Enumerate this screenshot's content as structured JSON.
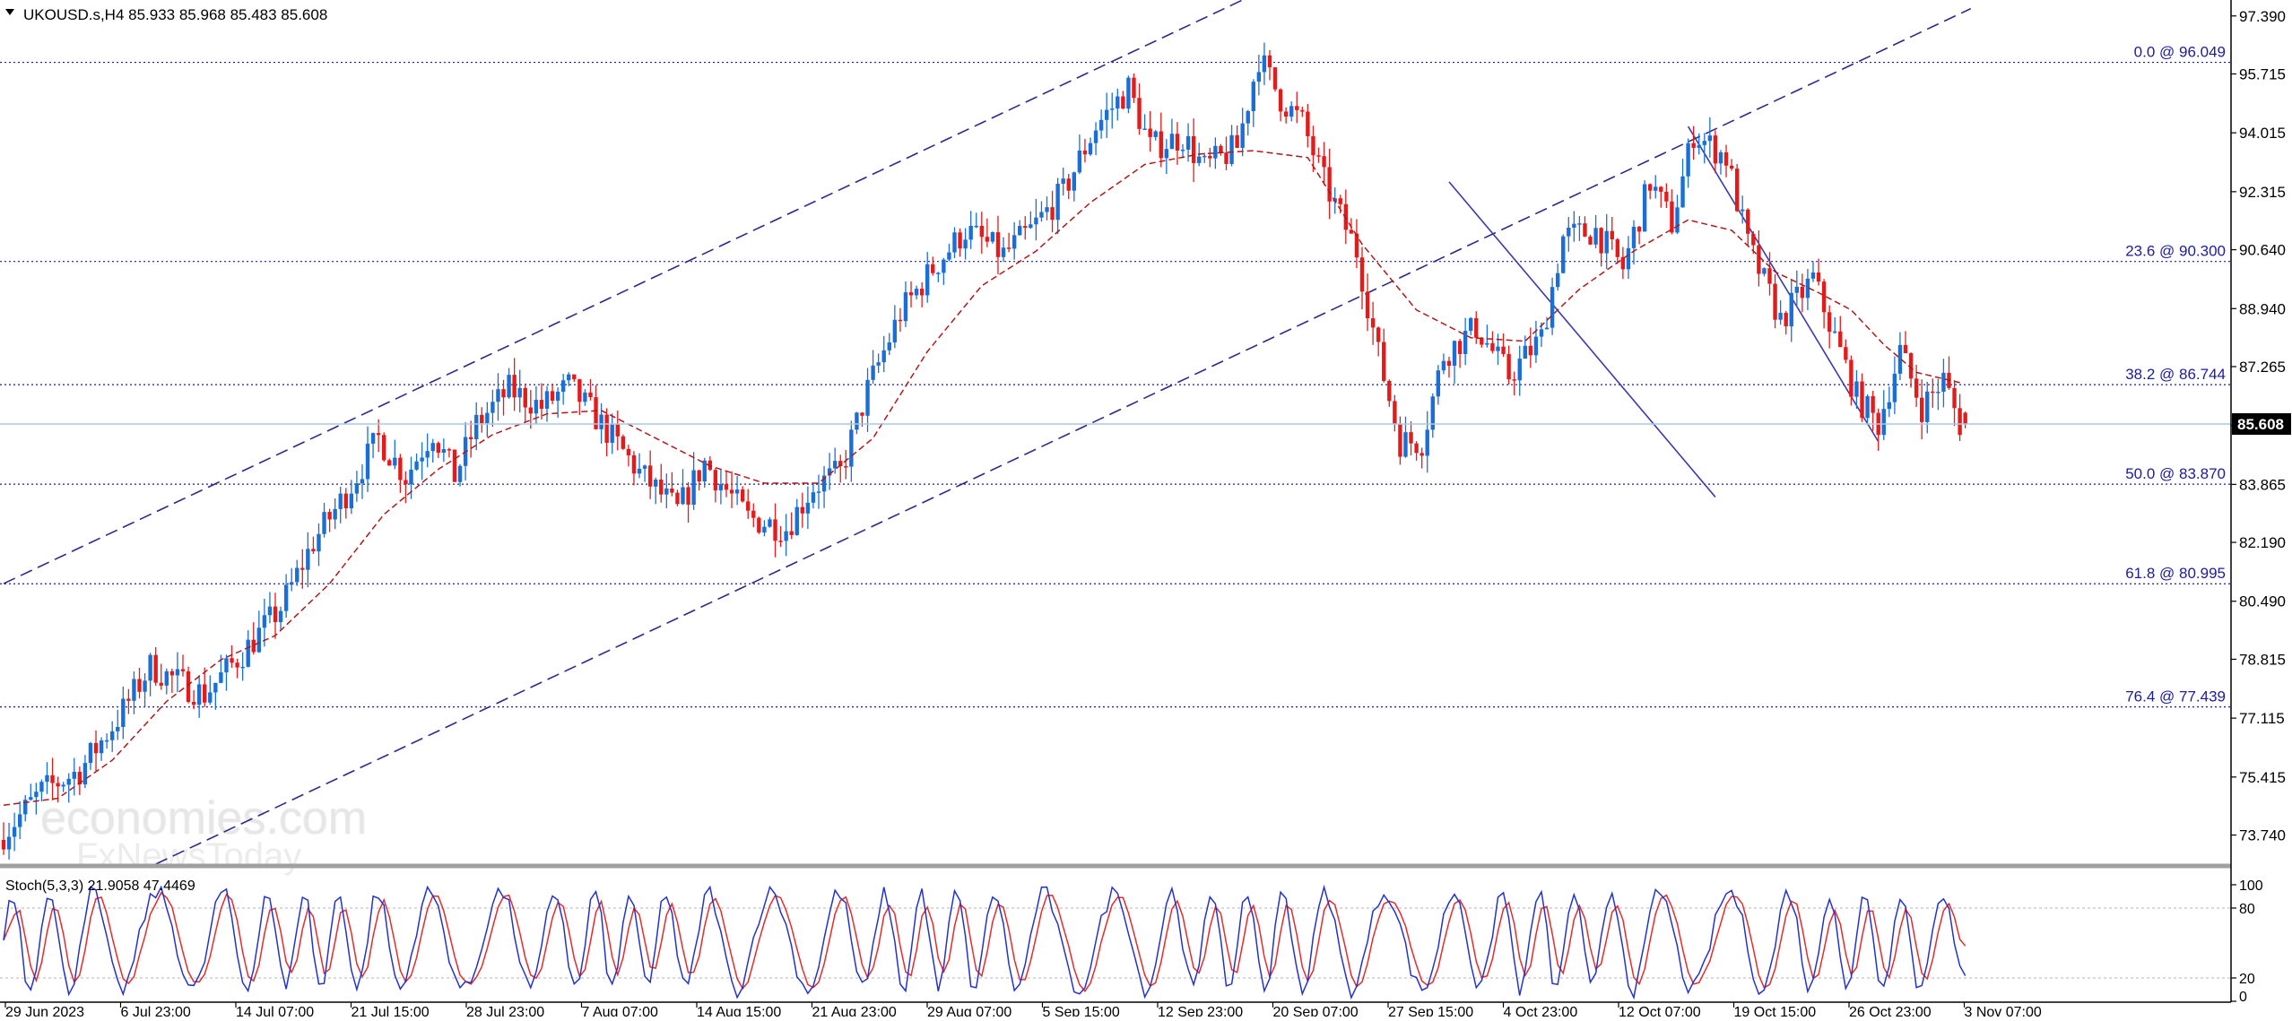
{
  "chart_data": {
    "type": "candlestick",
    "symbol_header": "UKOUSD.s,H4  85.933 85.968 85.483 85.608",
    "ohlc_current": {
      "open": 85.933,
      "high": 85.968,
      "low": 85.483,
      "close": 85.608
    },
    "price_axis": {
      "ylim": [
        72.9,
        97.85
      ],
      "ticks": [
        "97.390",
        "95.715",
        "94.015",
        "92.315",
        "90.640",
        "88.940",
        "87.265",
        "85.565",
        "83.865",
        "82.190",
        "80.490",
        "78.815",
        "77.115",
        "75.415",
        "73.740"
      ],
      "tick_values": [
        97.39,
        95.715,
        94.015,
        92.315,
        90.64,
        88.94,
        87.265,
        85.565,
        83.865,
        82.19,
        80.49,
        78.815,
        77.115,
        75.415,
        73.74
      ]
    },
    "current_price": {
      "value": 85.608,
      "label": "85.608"
    },
    "fibonacci_levels": [
      {
        "label": "0.0 @ 96.049",
        "value": 96.049
      },
      {
        "label": "23.6 @ 90.300",
        "value": 90.3
      },
      {
        "label": "38.2 @ 86.744",
        "value": 86.744
      },
      {
        "label": "50.0 @ 83.870",
        "value": 83.87
      },
      {
        "label": "61.8 @ 80.995",
        "value": 80.995
      },
      {
        "label": "76.4 @ 77.439",
        "value": 77.439
      }
    ],
    "x_axis_labels": [
      "29 Jun 2023",
      "6 Jul 23:00",
      "14 Jul 07:00",
      "21 Jul 15:00",
      "28 Jul 23:00",
      "7 Aug 07:00",
      "14 Aug 15:00",
      "21 Aug 23:00",
      "29 Aug 07:00",
      "5 Sep 15:00",
      "12 Sep 23:00",
      "20 Sep 07:00",
      "27 Sep 15:00",
      "4 Oct 23:00",
      "12 Oct 07:00",
      "19 Oct 15:00",
      "26 Oct 23:00",
      "3 Nov 07:00"
    ],
    "close_path_points": [
      [
        0,
        73.6
      ],
      [
        8,
        75.0
      ],
      [
        15,
        75.6
      ],
      [
        22,
        77.1
      ],
      [
        28,
        78.6
      ],
      [
        34,
        78.1
      ],
      [
        38,
        77.8
      ],
      [
        45,
        79.0
      ],
      [
        52,
        80.3
      ],
      [
        58,
        82.2
      ],
      [
        64,
        83.6
      ],
      [
        70,
        85.2
      ],
      [
        75,
        84.1
      ],
      [
        80,
        85.4
      ],
      [
        84,
        84.1
      ],
      [
        88,
        85.6
      ],
      [
        94,
        86.6
      ],
      [
        100,
        86.1
      ],
      [
        105,
        86.7
      ],
      [
        110,
        85.8
      ],
      [
        118,
        84.2
      ],
      [
        125,
        83.1
      ],
      [
        130,
        84.5
      ],
      [
        138,
        82.9
      ],
      [
        145,
        82.6
      ],
      [
        150,
        83.8
      ],
      [
        155,
        84.2
      ],
      [
        160,
        86.6
      ],
      [
        166,
        88.8
      ],
      [
        172,
        90.1
      ],
      [
        178,
        91.2
      ],
      [
        185,
        90.5
      ],
      [
        190,
        91.2
      ],
      [
        196,
        92.3
      ],
      [
        202,
        94.2
      ],
      [
        208,
        95.3
      ],
      [
        212,
        93.6
      ],
      [
        218,
        93.9
      ],
      [
        222,
        93.0
      ],
      [
        228,
        93.6
      ],
      [
        232,
        96.2
      ],
      [
        236,
        95.0
      ],
      [
        240,
        94.3
      ],
      [
        244,
        92.6
      ],
      [
        250,
        90.6
      ],
      [
        254,
        87.6
      ],
      [
        258,
        85.1
      ],
      [
        262,
        85.1
      ],
      [
        266,
        87.6
      ],
      [
        272,
        88.4
      ],
      [
        278,
        87.0
      ],
      [
        284,
        88.1
      ],
      [
        288,
        91.0
      ],
      [
        294,
        91.2
      ],
      [
        299,
        90.1
      ],
      [
        304,
        92.6
      ],
      [
        308,
        91.4
      ],
      [
        312,
        94.0
      ],
      [
        318,
        93.3
      ],
      [
        322,
        90.8
      ],
      [
        328,
        88.6
      ],
      [
        334,
        89.8
      ],
      [
        338,
        88.1
      ],
      [
        342,
        86.4
      ],
      [
        346,
        85.6
      ],
      [
        350,
        87.7
      ],
      [
        354,
        86.1
      ],
      [
        358,
        86.9
      ],
      [
        361,
        85.6
      ]
    ],
    "ma_path_points": [
      [
        0,
        74.6
      ],
      [
        10,
        74.8
      ],
      [
        20,
        75.9
      ],
      [
        30,
        77.6
      ],
      [
        40,
        78.8
      ],
      [
        50,
        79.5
      ],
      [
        60,
        81.0
      ],
      [
        70,
        83.0
      ],
      [
        80,
        84.3
      ],
      [
        90,
        85.3
      ],
      [
        100,
        85.9
      ],
      [
        110,
        86.0
      ],
      [
        120,
        85.2
      ],
      [
        130,
        84.4
      ],
      [
        140,
        83.9
      ],
      [
        150,
        83.9
      ],
      [
        160,
        85.2
      ],
      [
        170,
        87.7
      ],
      [
        180,
        89.6
      ],
      [
        190,
        90.6
      ],
      [
        200,
        92.0
      ],
      [
        210,
        93.1
      ],
      [
        220,
        93.4
      ],
      [
        230,
        93.5
      ],
      [
        240,
        93.3
      ],
      [
        250,
        90.8
      ],
      [
        260,
        88.9
      ],
      [
        270,
        88.1
      ],
      [
        280,
        88.0
      ],
      [
        290,
        89.5
      ],
      [
        300,
        90.6
      ],
      [
        310,
        91.5
      ],
      [
        318,
        91.2
      ],
      [
        326,
        90.0
      ],
      [
        334,
        89.4
      ],
      [
        340,
        88.9
      ],
      [
        346,
        87.9
      ],
      [
        352,
        87.1
      ],
      [
        360,
        86.8
      ]
    ],
    "channel_lines": [
      {
        "name": "upper-channel",
        "from": [
          0,
          81.0
        ],
        "to": [
          228,
          97.85
        ],
        "style": "dashed"
      },
      {
        "name": "lower-channel",
        "from": [
          28,
          72.9
        ],
        "to": [
          362,
          97.6
        ],
        "style": "dashed"
      },
      {
        "name": "down-channel-upper",
        "from": [
          310,
          94.2
        ],
        "to": [
          345,
          85.1
        ],
        "style": "solid"
      },
      {
        "name": "down-channel-lower",
        "from": [
          266,
          92.6
        ],
        "to": [
          315,
          83.5
        ],
        "style": "solid"
      }
    ],
    "stochastic": {
      "label": "Stoch(5,3,3) 21.9058 47.4469",
      "k": 21.9058,
      "d": 47.4469,
      "levels": [
        "100",
        "80",
        "20",
        "0"
      ],
      "level_values": [
        100,
        80,
        20,
        0
      ],
      "ylim": [
        0,
        100
      ]
    },
    "watermark": {
      "brand": "economies.com",
      "sub": "FxNewsToday"
    }
  }
}
